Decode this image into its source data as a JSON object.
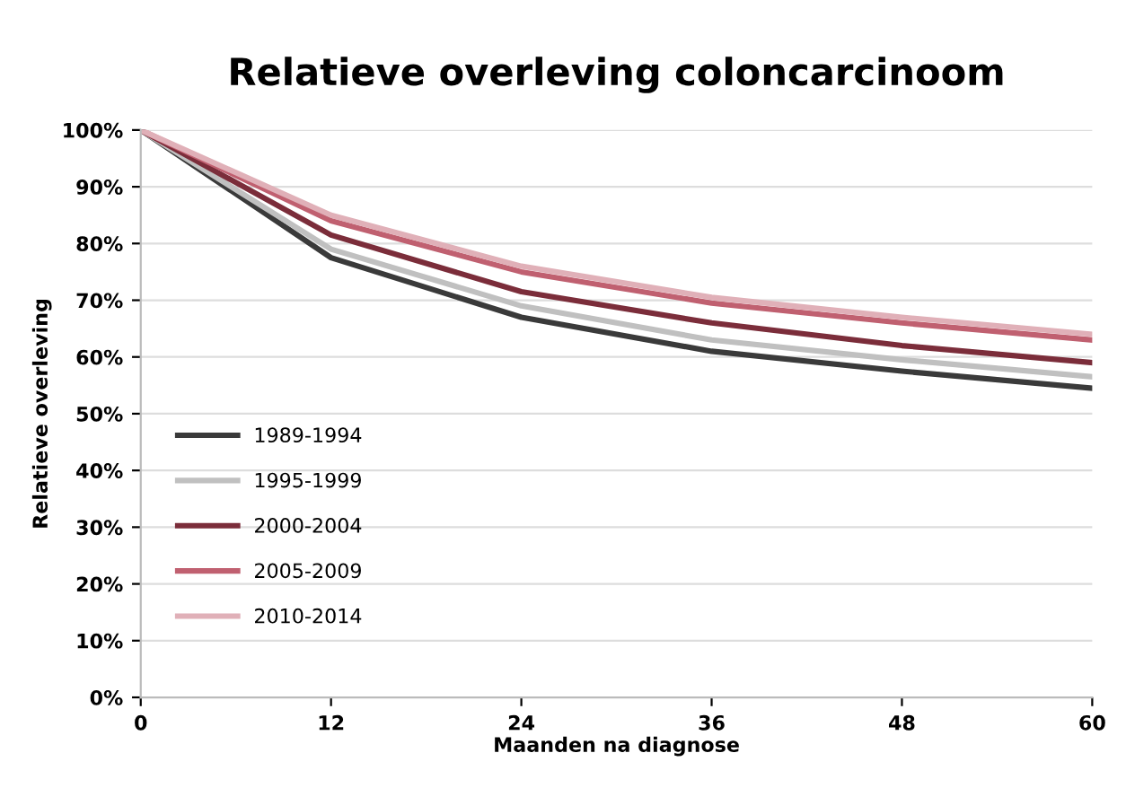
{
  "chart_data": {
    "type": "line",
    "title": "Relatieve overleving coloncarcinoom",
    "xlabel": "Maanden na diagnose",
    "ylabel": "Relatieve overleving",
    "x": [
      0,
      12,
      24,
      36,
      48,
      60
    ],
    "series": [
      {
        "name": "1989-1994",
        "color": "#3a3a3a",
        "values": [
          100,
          77.5,
          67,
          61,
          57.5,
          54.5
        ]
      },
      {
        "name": "1995-1999",
        "color": "#c0c0c0",
        "values": [
          100,
          79,
          69,
          63,
          59.5,
          56.5
        ]
      },
      {
        "name": "2000-2004",
        "color": "#7b2d3a",
        "values": [
          100,
          81.5,
          71.5,
          66,
          62,
          59
        ]
      },
      {
        "name": "2005-2009",
        "color": "#c06070",
        "values": [
          100,
          84,
          75,
          69.5,
          66,
          63
        ]
      },
      {
        "name": "2010-2014",
        "color": "#e0b0b8",
        "values": [
          100,
          85,
          76,
          70.5,
          67,
          64
        ]
      }
    ],
    "xlim": [
      0,
      60
    ],
    "xticks": [
      0,
      12,
      24,
      36,
      48,
      60
    ],
    "ylim": [
      0,
      100
    ],
    "yticks": [
      {
        "value": 0,
        "label": "0%"
      },
      {
        "value": 10,
        "label": "10%"
      },
      {
        "value": 20,
        "label": "20%"
      },
      {
        "value": 30,
        "label": "30%"
      },
      {
        "value": 40,
        "label": "40%"
      },
      {
        "value": 50,
        "label": "50%"
      },
      {
        "value": 60,
        "label": "60%"
      },
      {
        "value": 70,
        "label": "70%"
      },
      {
        "value": 80,
        "label": "80%"
      },
      {
        "value": 90,
        "label": "90%"
      },
      {
        "value": 100,
        "label": "100%"
      }
    ],
    "grid": "y",
    "legend": "left",
    "marker": "none",
    "line_style": "solid"
  }
}
